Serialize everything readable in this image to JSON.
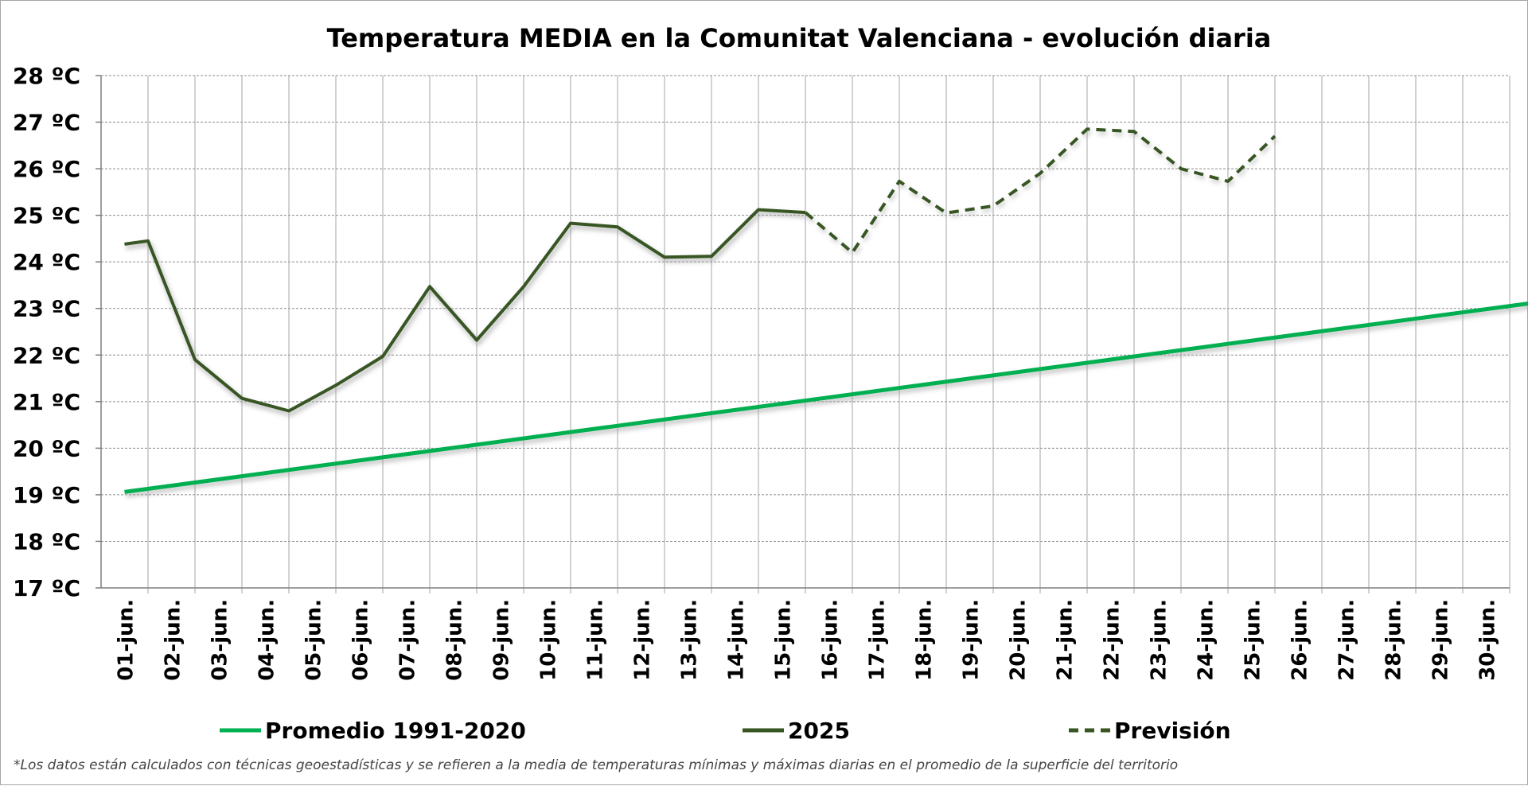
{
  "chart_data": {
    "type": "line",
    "title": "Temperatura MEDIA en la Comunitat Valenciana - evolución diaria",
    "categories": [
      "01-jun.",
      "02-jun.",
      "03-jun.",
      "04-jun.",
      "05-jun.",
      "06-jun.",
      "07-jun.",
      "08-jun.",
      "09-jun.",
      "10-jun.",
      "11-jun.",
      "12-jun.",
      "13-jun.",
      "14-jun.",
      "15-jun.",
      "16-jun.",
      "17-jun.",
      "18-jun.",
      "19-jun.",
      "20-jun.",
      "21-jun.",
      "22-jun.",
      "23-jun.",
      "24-jun.",
      "25-jun.",
      "26-jun.",
      "27-jun.",
      "28-jun.",
      "29-jun.",
      "30-jun."
    ],
    "yticks": [
      "17 ºC",
      "18 ºC",
      "19 ºC",
      "20 ºC",
      "21 ºC",
      "22 ºC",
      "23 ºC",
      "24 ºC",
      "25 ºC",
      "26 ºC",
      "27 ºC",
      "28 ºC"
    ],
    "ylim": [
      17,
      28
    ],
    "grid": true,
    "legend_position": "bottom",
    "series": [
      {
        "name": "Promedio 1991-2020",
        "style": "solid",
        "color": "#00b050",
        "points": [
          [
            0.5,
            19.06
          ],
          [
            30.5,
            23.12
          ]
        ]
      },
      {
        "name": "2025",
        "style": "solid",
        "color": "#375623",
        "points": [
          [
            0.5,
            24.38
          ],
          [
            1.0,
            24.45
          ],
          [
            2.0,
            21.9
          ],
          [
            3.0,
            21.07
          ],
          [
            4.0,
            20.8
          ],
          [
            5.0,
            21.35
          ],
          [
            6.0,
            21.97
          ],
          [
            7.0,
            23.47
          ],
          [
            8.0,
            22.32
          ],
          [
            9.0,
            23.47
          ],
          [
            10.0,
            24.83
          ],
          [
            11.0,
            24.75
          ],
          [
            12.0,
            24.1
          ],
          [
            13.0,
            24.12
          ],
          [
            14.0,
            25.12
          ],
          [
            15.0,
            25.06
          ]
        ]
      },
      {
        "name": "Previsión",
        "style": "dashed",
        "color": "#375623",
        "points": [
          [
            15.0,
            25.06
          ],
          [
            16.0,
            24.2
          ],
          [
            17.0,
            25.73
          ],
          [
            18.0,
            25.05
          ],
          [
            19.0,
            25.2
          ],
          [
            20.0,
            25.9
          ],
          [
            21.0,
            26.85
          ],
          [
            22.0,
            26.8
          ],
          [
            23.0,
            26.0
          ],
          [
            24.0,
            25.73
          ],
          [
            25.0,
            26.7
          ]
        ]
      }
    ],
    "footnote": "*Los datos están calculados con técnicas geoestadísticas y se refieren a la media de temperaturas mínimas y máximas diarias en el promedio de la superficie del territorio"
  }
}
